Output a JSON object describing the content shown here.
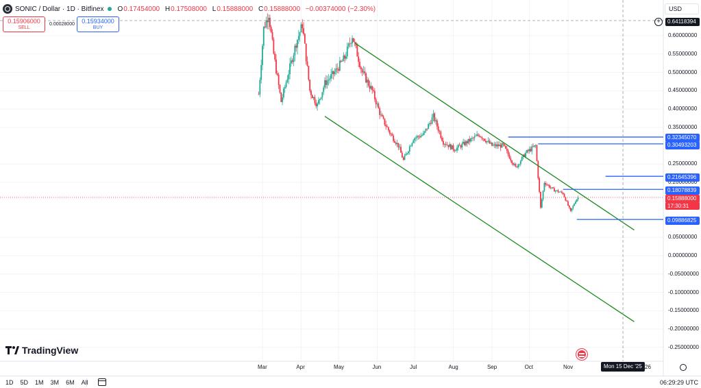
{
  "header": {
    "symbol": "SONIC / Dollar · 1D · Bitfinex",
    "open_label": "O",
    "open": "0.17454000",
    "high_label": "H",
    "high": "0.17508000",
    "low_label": "L",
    "low": "0.15888000",
    "close_label": "C",
    "close": "0.15888000",
    "change": "−0.00374000 (−2.30%)"
  },
  "trade": {
    "sell_price": "0.15906000",
    "sell_label": "SELL",
    "spread": "0.00028000",
    "buy_price": "0.15934000",
    "buy_label": "BUY"
  },
  "currency": "USD",
  "crosshair_price": "0.64118394",
  "last_price": "0.15888000",
  "countdown": "17:30:31",
  "level_tags": [
    "0.32345070",
    "0.30493203",
    "0.21645396",
    "0.18078839",
    "0.09886825"
  ],
  "crosshair_date": "Mon 15 Dec '25",
  "x_tail": "26",
  "timeframes": [
    "1D",
    "5D",
    "1M",
    "3M",
    "6M",
    "All"
  ],
  "clock": "06:29:29 UTC",
  "brand": "TradingView",
  "colors": {
    "up": "#22ab94",
    "down": "#f23645",
    "channel": "#1b8a1b",
    "level": "#2962ff"
  },
  "chart_data": {
    "type": "candlestick",
    "title": "SONIC / Dollar · 1D · Bitfinex",
    "y_ticks": [
      "0.60000000",
      "0.55000000",
      "0.50000000",
      "0.45000000",
      "0.40000000",
      "0.35000000",
      "0.25000000",
      "0.20000000",
      "0.05000000",
      "0.00000000",
      "-0.05000000",
      "-0.10000000",
      "-0.15000000",
      "-0.20000000",
      "-0.25000000"
    ],
    "x_ticks": [
      "Mar",
      "Apr",
      "May",
      "Jun",
      "Jul",
      "Aug",
      "Sep",
      "Oct",
      "Nov"
    ],
    "ylim": [
      -0.27,
      0.66
    ],
    "grid": true,
    "price_path": [
      {
        "date": "2025-02-26",
        "price": 0.44
      },
      {
        "date": "2025-03-02",
        "price": 0.62
      },
      {
        "date": "2025-03-06",
        "price": 0.66
      },
      {
        "date": "2025-03-10",
        "price": 0.55
      },
      {
        "date": "2025-03-16",
        "price": 0.42
      },
      {
        "date": "2025-03-22",
        "price": 0.5
      },
      {
        "date": "2025-03-28",
        "price": 0.58
      },
      {
        "date": "2025-04-02",
        "price": 0.63
      },
      {
        "date": "2025-04-08",
        "price": 0.45
      },
      {
        "date": "2025-04-14",
        "price": 0.41
      },
      {
        "date": "2025-04-20",
        "price": 0.47
      },
      {
        "date": "2025-04-28",
        "price": 0.5
      },
      {
        "date": "2025-05-06",
        "price": 0.54
      },
      {
        "date": "2025-05-12",
        "price": 0.6
      },
      {
        "date": "2025-05-20",
        "price": 0.5
      },
      {
        "date": "2025-05-28",
        "price": 0.45
      },
      {
        "date": "2025-06-04",
        "price": 0.38
      },
      {
        "date": "2025-06-12",
        "price": 0.33
      },
      {
        "date": "2025-06-18",
        "price": 0.3
      },
      {
        "date": "2025-06-22",
        "price": 0.26
      },
      {
        "date": "2025-06-30",
        "price": 0.32
      },
      {
        "date": "2025-07-08",
        "price": 0.33
      },
      {
        "date": "2025-07-16",
        "price": 0.38
      },
      {
        "date": "2025-07-24",
        "price": 0.31
      },
      {
        "date": "2025-08-02",
        "price": 0.29
      },
      {
        "date": "2025-08-12",
        "price": 0.31
      },
      {
        "date": "2025-08-22",
        "price": 0.33
      },
      {
        "date": "2025-09-01",
        "price": 0.3
      },
      {
        "date": "2025-09-10",
        "price": 0.3
      },
      {
        "date": "2025-09-20",
        "price": 0.24
      },
      {
        "date": "2025-09-28",
        "price": 0.28
      },
      {
        "date": "2025-10-06",
        "price": 0.3
      },
      {
        "date": "2025-10-10",
        "price": 0.13
      },
      {
        "date": "2025-10-13",
        "price": 0.2
      },
      {
        "date": "2025-10-20",
        "price": 0.18
      },
      {
        "date": "2025-10-28",
        "price": 0.17
      },
      {
        "date": "2025-11-03",
        "price": 0.12
      },
      {
        "date": "2025-11-07",
        "price": 0.15
      },
      {
        "date": "2025-11-09",
        "price": 0.159
      }
    ],
    "channel_upper": [
      {
        "date": "2025-05-14",
        "price": 0.58
      },
      {
        "date": "2025-12-24",
        "price": 0.07
      }
    ],
    "channel_lower": [
      {
        "date": "2025-04-20",
        "price": 0.38
      },
      {
        "date": "2025-12-24",
        "price": -0.18
      }
    ],
    "levels": [
      {
        "price": 0.3234507,
        "from": "2025-09-14"
      },
      {
        "price": 0.30493203,
        "from": "2025-10-08"
      },
      {
        "price": 0.21645396,
        "from": "2025-12-01"
      },
      {
        "price": 0.18078839,
        "from": "2025-10-28"
      },
      {
        "price": 0.09886825,
        "from": "2025-11-08"
      }
    ],
    "last_price": 0.15888,
    "crosshair": {
      "date": "2025-12-15",
      "price": 0.64118394
    }
  }
}
